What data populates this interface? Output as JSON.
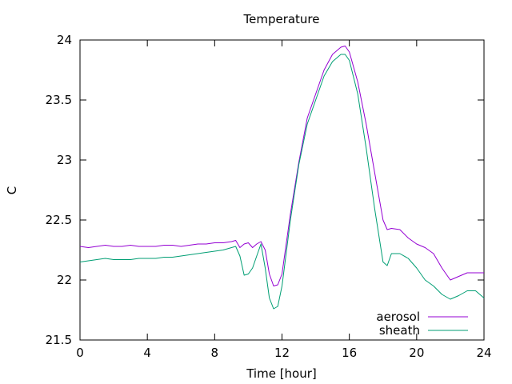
{
  "chart_data": {
    "type": "line",
    "title": "Temperature",
    "xlabel": "Time [hour]",
    "ylabel": "C",
    "xlim": [
      0,
      24
    ],
    "ylim": [
      21.5,
      24
    ],
    "x_ticks": [
      0,
      4,
      8,
      12,
      16,
      20,
      24
    ],
    "x_tick_labels": [
      "0",
      "4",
      "8",
      "12",
      "16",
      "20",
      "24"
    ],
    "y_ticks": [
      21.5,
      22,
      22.5,
      23,
      23.5,
      24
    ],
    "y_tick_labels": [
      "21.5",
      "22",
      "22.5",
      "23",
      "23.5",
      "24"
    ],
    "grid": false,
    "legend_position": "bottom-right",
    "series": [
      {
        "name": "aerosol",
        "color": "#9400d3",
        "x": [
          0,
          0.5,
          1,
          1.5,
          2,
          2.5,
          3,
          3.5,
          4,
          4.5,
          5,
          5.5,
          6,
          6.5,
          7,
          7.5,
          8,
          8.5,
          9,
          9.25,
          9.5,
          9.75,
          10,
          10.25,
          10.5,
          10.75,
          11,
          11.25,
          11.5,
          11.75,
          12,
          12.5,
          13,
          13.5,
          14,
          14.5,
          15,
          15.5,
          15.75,
          16,
          16.5,
          17,
          17.5,
          18,
          18.25,
          18.5,
          19,
          19.5,
          20,
          20.5,
          21,
          21.5,
          22,
          22.5,
          23,
          23.5,
          24
        ],
        "y": [
          22.28,
          22.27,
          22.28,
          22.29,
          22.28,
          22.28,
          22.29,
          22.28,
          22.28,
          22.28,
          22.29,
          22.29,
          22.28,
          22.29,
          22.3,
          22.3,
          22.31,
          22.31,
          22.32,
          22.33,
          22.27,
          22.3,
          22.31,
          22.27,
          22.3,
          22.32,
          22.25,
          22.05,
          21.95,
          21.96,
          22.05,
          22.55,
          22.98,
          23.35,
          23.55,
          23.75,
          23.88,
          23.94,
          23.95,
          23.9,
          23.65,
          23.3,
          22.9,
          22.5,
          22.42,
          22.43,
          22.42,
          22.35,
          22.3,
          22.27,
          22.22,
          22.1,
          22.0,
          22.03,
          22.06,
          22.06,
          22.06
        ]
      },
      {
        "name": "sheath",
        "color": "#009e73",
        "x": [
          0,
          0.5,
          1,
          1.5,
          2,
          2.5,
          3,
          3.5,
          4,
          4.5,
          5,
          5.5,
          6,
          6.5,
          7,
          7.5,
          8,
          8.5,
          9,
          9.25,
          9.5,
          9.75,
          10,
          10.25,
          10.5,
          10.75,
          11,
          11.25,
          11.5,
          11.75,
          12,
          12.5,
          13,
          13.5,
          14,
          14.5,
          15,
          15.5,
          15.75,
          16,
          16.5,
          17,
          17.5,
          18,
          18.25,
          18.5,
          19,
          19.5,
          20,
          20.5,
          21,
          21.5,
          22,
          22.5,
          23,
          23.5,
          24
        ],
        "y": [
          22.15,
          22.16,
          22.17,
          22.18,
          22.17,
          22.17,
          22.17,
          22.18,
          22.18,
          22.18,
          22.19,
          22.19,
          22.2,
          22.21,
          22.22,
          22.23,
          22.24,
          22.25,
          22.27,
          22.28,
          22.2,
          22.04,
          22.05,
          22.1,
          22.2,
          22.3,
          22.1,
          21.85,
          21.76,
          21.78,
          21.95,
          22.5,
          22.96,
          23.3,
          23.5,
          23.7,
          23.82,
          23.88,
          23.88,
          23.83,
          23.55,
          23.1,
          22.6,
          22.15,
          22.12,
          22.22,
          22.22,
          22.18,
          22.1,
          22.0,
          21.95,
          21.88,
          21.84,
          21.87,
          21.91,
          21.91,
          21.85
        ]
      }
    ]
  }
}
